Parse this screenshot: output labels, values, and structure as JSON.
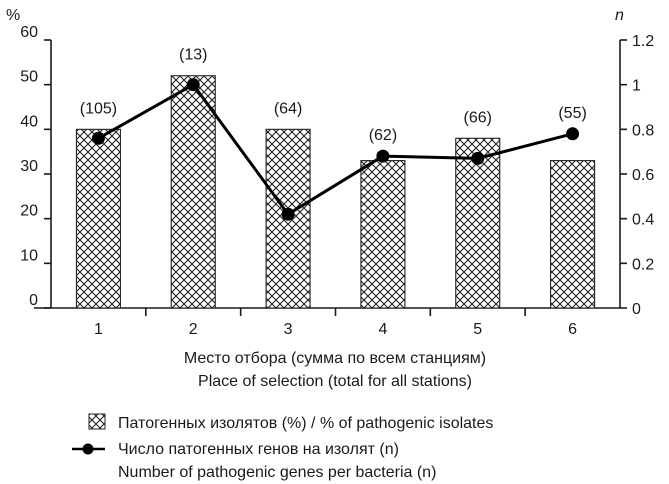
{
  "chart_data": {
    "type": "bar",
    "categories": [
      "1",
      "2",
      "3",
      "4",
      "5",
      "6"
    ],
    "bar_series": {
      "name": "Патогенных изолятов (%) / % of pathogenic isolates",
      "values": [
        40,
        52,
        40,
        33,
        38,
        33
      ],
      "data_labels": [
        "(105)",
        "(13)",
        "(64)",
        "(62)",
        "(66)",
        "(55)"
      ],
      "color": "#222222",
      "fill_pattern": "crosshatch"
    },
    "line_series": {
      "name_line1": "Число патогенных генов на изолят (n)",
      "name_line2": "Number of pathogenic genes per bacteria (n)",
      "values": [
        0.76,
        1.0,
        0.42,
        0.68,
        0.67,
        0.78
      ],
      "color": "#000000"
    },
    "y_left": {
      "label": "%",
      "ylim": [
        0,
        60
      ],
      "ticks": [
        "0",
        "10",
        "20",
        "30",
        "40",
        "50",
        "60"
      ]
    },
    "y_right": {
      "label": "n",
      "ylim": [
        0,
        1.2
      ],
      "ticks": [
        "0",
        "0.2",
        "0.4",
        "0.6",
        "0.8",
        "1",
        "1.2"
      ]
    },
    "xlabel_line1": "Место отбора (сумма по всем станциям)",
    "xlabel_line2": "Place of selection (total for all stations)",
    "grid": false,
    "legend_placement": "bottom"
  }
}
